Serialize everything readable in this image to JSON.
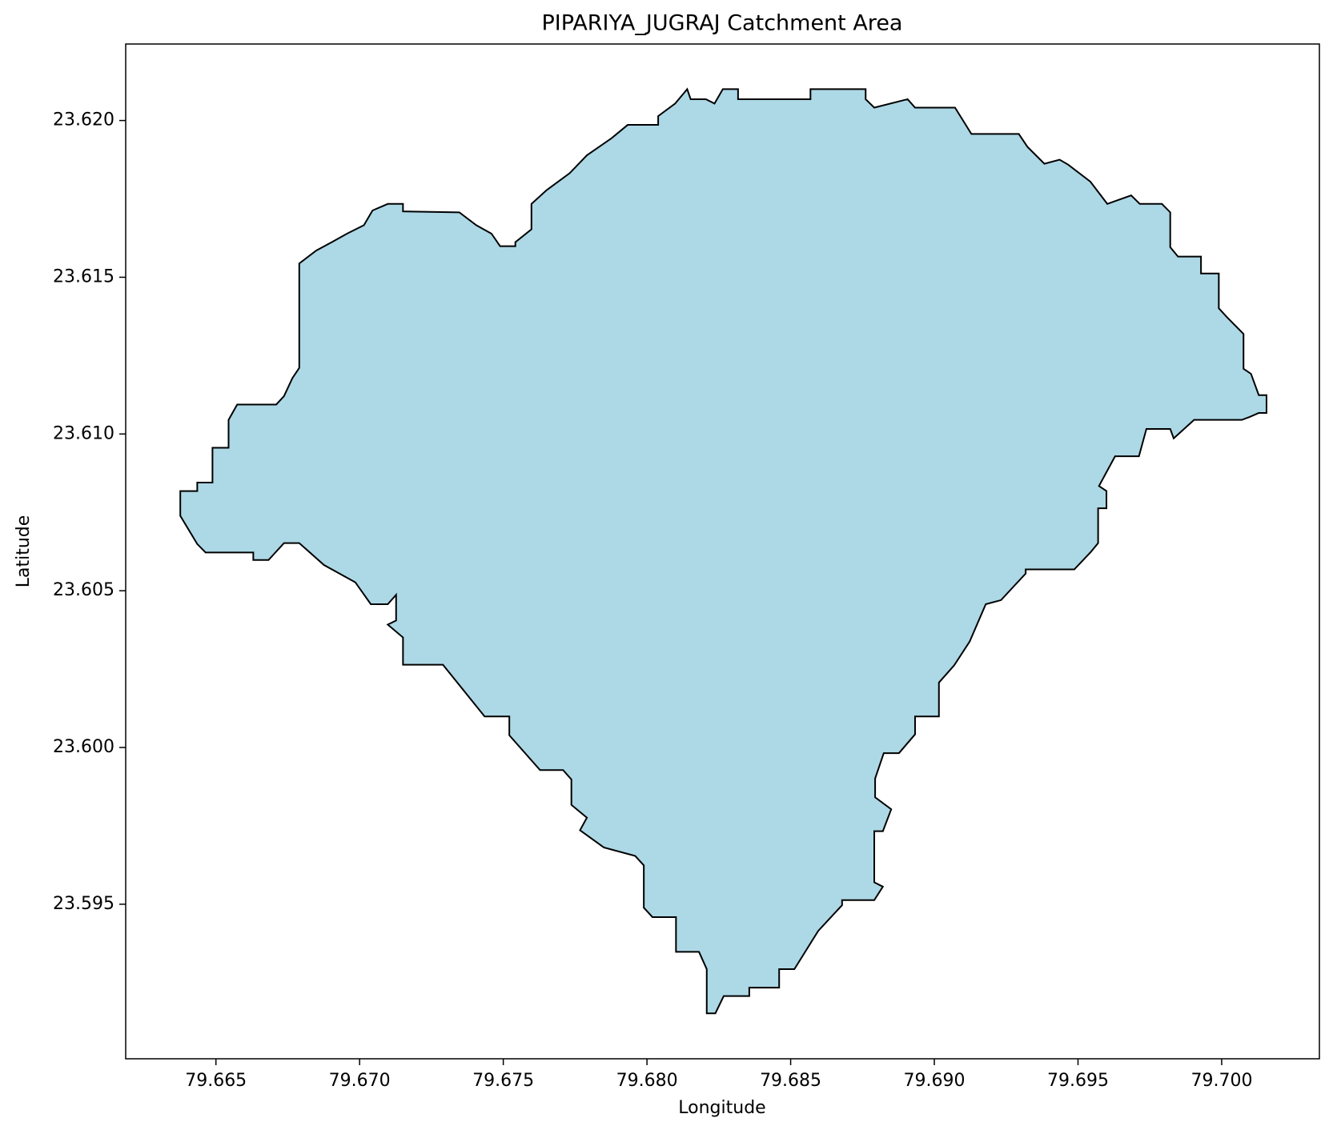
{
  "chart_data": {
    "type": "polygon",
    "title": "PIPARIYA_JUGRAJ Catchment Area",
    "xlabel": "Longitude",
    "ylabel": "Latitude",
    "fill": "#add8e6",
    "edgecolor": "#000000",
    "xlim": [
      79.66186,
      79.7034
    ],
    "ylim": [
      23.59007,
      23.62244
    ],
    "xticks": [
      79.665,
      {
        "value": 79.67,
        "label": "79.670"
      },
      79.675,
      {
        "value": 79.68,
        "label": "79.680"
      },
      79.685,
      {
        "value": 79.69,
        "label": "79.690"
      },
      79.695,
      {
        "value": 79.7,
        "label": "79.700"
      }
    ],
    "yticks": [
      23.595,
      {
        "value": 23.6,
        "label": "23.600"
      },
      23.605,
      {
        "value": 23.61,
        "label": "23.610"
      },
      23.615,
      {
        "value": 23.62,
        "label": "23.620"
      }
    ],
    "x": [
      79.66376,
      79.66376,
      79.66435,
      79.66464,
      79.6663,
      79.6663,
      79.66683,
      79.66737,
      79.6679,
      79.66876,
      79.66985,
      79.67039,
      79.67098,
      79.67127,
      79.67127,
      79.67098,
      79.67151,
      79.67151,
      79.6729,
      79.67435,
      79.67521,
      79.67521,
      79.67628,
      79.67708,
      79.67737,
      79.67737,
      79.67791,
      79.67767,
      79.6785,
      79.67959,
      79.67989,
      79.67989,
      79.68019,
      79.68101,
      79.68101,
      79.68181,
      79.68208,
      79.68208,
      79.68238,
      79.68267,
      79.68356,
      79.68356,
      79.6846,
      79.6846,
      79.68513,
      79.68596,
      79.68679,
      79.68679,
      79.68791,
      79.68821,
      79.68791,
      79.68791,
      79.68821,
      79.6885,
      79.68794,
      79.68794,
      79.68824,
      79.68877,
      79.68933,
      79.68933,
      79.69016,
      79.69016,
      79.69069,
      79.69123,
      79.69179,
      79.69232,
      79.69318,
      79.69318,
      79.69487,
      79.69543,
      79.6957,
      79.6957,
      79.69599,
      79.69599,
      79.69573,
      79.69629,
      79.69712,
      79.69738,
      79.69821,
      79.69833,
      79.69904,
      79.7007,
      79.70096,
      79.70129,
      79.70156,
      79.70156,
      79.70129,
      79.70102,
      79.70076,
      79.70076,
      79.70017,
      79.6999,
      79.6999,
      79.69928,
      79.69928,
      79.69848,
      79.69821,
      79.69821,
      79.69792,
      79.69715,
      79.69685,
      79.69602,
      79.69543,
      79.69466,
      79.69436,
      79.69383,
      79.69324,
      79.69294,
      79.69129,
      79.69102,
      79.69072,
      79.68933,
      79.68907,
      79.68791,
      79.68761,
      79.68761,
      79.68569,
      79.68569,
      79.68317,
      79.68317,
      79.68264,
      79.68235,
      79.68205,
      79.68152,
      79.6814,
      79.68098,
      79.68039,
      79.68039,
      79.67933,
      79.67876,
      79.67791,
      79.67731,
      79.67651,
      79.67598,
      79.67598,
      79.67542,
      79.67542,
      79.67489,
      79.67459,
      79.67406,
      79.67347,
      79.67151,
      79.67151,
      79.67098,
      79.67045,
      79.67015,
      79.66956,
      79.66903,
      79.66849,
      79.6679,
      79.6679,
      79.66766,
      79.66737,
      79.6671,
      79.66574,
      79.66544,
      79.66544,
      79.66488,
      79.66488,
      79.66435,
      79.66435
    ],
    "y": [
      23.60818,
      23.60739,
      23.60649,
      23.60622,
      23.60622,
      23.60598,
      23.60598,
      23.60652,
      23.60652,
      23.60582,
      23.60527,
      23.60457,
      23.60457,
      23.60487,
      23.60405,
      23.60392,
      23.60351,
      23.60264,
      23.60264,
      23.60099,
      23.60099,
      23.60039,
      23.59928,
      23.59928,
      23.59898,
      23.59817,
      23.59776,
      23.59736,
      23.59681,
      23.59654,
      23.59624,
      23.59489,
      23.59459,
      23.59459,
      23.59348,
      23.59348,
      23.59293,
      23.59152,
      23.59152,
      23.59207,
      23.59207,
      23.59234,
      23.59234,
      23.59293,
      23.59293,
      23.59415,
      23.59497,
      23.59513,
      23.59513,
      23.59556,
      23.5957,
      23.59733,
      23.59733,
      23.59803,
      23.59841,
      23.59901,
      23.59982,
      23.59982,
      23.60042,
      23.60099,
      23.60099,
      23.60207,
      23.60262,
      23.60338,
      23.60457,
      23.6047,
      23.60555,
      23.60568,
      23.60568,
      23.60622,
      23.60652,
      23.60763,
      23.60763,
      23.60818,
      23.60834,
      23.60929,
      23.60929,
      23.61016,
      23.61016,
      23.60986,
      23.61045,
      23.61045,
      23.61054,
      23.61067,
      23.61067,
      23.61124,
      23.61124,
      23.61192,
      23.61208,
      23.61319,
      23.61374,
      23.61401,
      23.61512,
      23.61512,
      23.61566,
      23.61566,
      23.61596,
      23.61707,
      23.61734,
      23.61734,
      23.61761,
      23.61734,
      23.61805,
      23.61859,
      23.61875,
      23.61862,
      23.61916,
      23.61957,
      23.61957,
      23.61997,
      23.62041,
      23.62041,
      23.62068,
      23.62041,
      23.62068,
      23.621,
      23.621,
      23.62068,
      23.62068,
      23.621,
      23.621,
      23.62054,
      23.62068,
      23.62068,
      23.621,
      23.62054,
      23.62014,
      23.61986,
      23.61986,
      23.61943,
      23.61889,
      23.61832,
      23.61778,
      23.61734,
      23.61653,
      23.61612,
      23.61599,
      23.61599,
      23.61639,
      23.61666,
      23.61707,
      23.6171,
      23.61734,
      23.61734,
      23.61713,
      23.61666,
      23.61639,
      23.61612,
      23.61585,
      23.61544,
      23.61211,
      23.61178,
      23.61121,
      23.61094,
      23.61094,
      23.61045,
      23.60956,
      23.60956,
      23.60845,
      23.60845,
      23.60818
    ]
  }
}
